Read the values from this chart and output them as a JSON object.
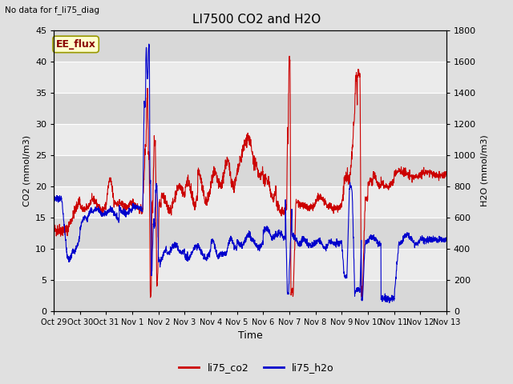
{
  "title": "LI7500 CO2 and H2O",
  "top_left_text": "No data for f_li75_diag",
  "xlabel": "Time",
  "ylabel_left": "CO2 (mmol/m3)",
  "ylabel_right": "H2O (mmol/m3)",
  "ylim_left": [
    0,
    45
  ],
  "ylim_right": [
    0,
    1800
  ],
  "yticks_left": [
    0,
    5,
    10,
    15,
    20,
    25,
    30,
    35,
    40,
    45
  ],
  "yticks_right": [
    0,
    200,
    400,
    600,
    800,
    1000,
    1200,
    1400,
    1600,
    1800
  ],
  "xtick_labels": [
    "Oct 29",
    "Oct 30",
    "Oct 31",
    "Nov 1",
    "Nov 2",
    "Nov 3",
    "Nov 4",
    "Nov 5",
    "Nov 6",
    "Nov 7",
    "Nov 8",
    "Nov 9",
    "Nov 10",
    "Nov 11",
    "Nov 12",
    "Nov 13"
  ],
  "background_color": "#e0e0e0",
  "plot_bg_color_light": "#ebebeb",
  "plot_bg_color_dark": "#d8d8d8",
  "grid_color": "#ffffff",
  "co2_color": "#cc0000",
  "h2o_color": "#0000cc",
  "legend_box_facecolor": "#ffffcc",
  "legend_box_edgecolor": "#999900",
  "legend_box_text": "EE_flux",
  "legend_box_text_color": "#880000",
  "legend_items": [
    "li75_co2",
    "li75_h2o"
  ],
  "legend_colors": [
    "#cc0000",
    "#0000cc"
  ],
  "n_days": 15
}
